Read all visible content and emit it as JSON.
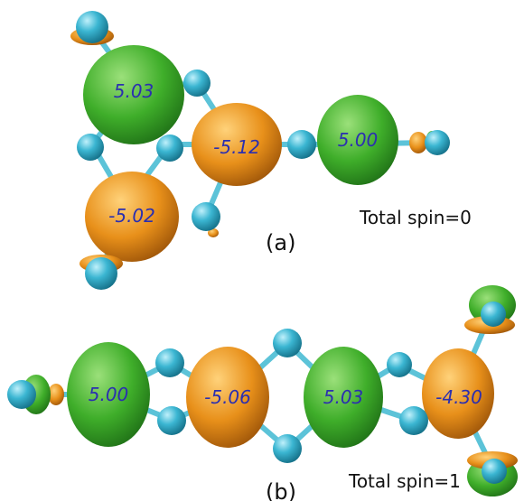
{
  "colors": {
    "up_lobe": "#3fae2a",
    "down_lobe": "#e8901a",
    "atom": "#2ea7c4",
    "bond": "#5cc3d8",
    "moment_text": "#2b2fb0"
  },
  "panel_a": {
    "label": "(a)",
    "total_spin": "Total spin=0",
    "moments": [
      "5.03",
      "-5.12",
      "5.00",
      "-5.02"
    ]
  },
  "panel_b": {
    "label": "(b)",
    "total_spin": "Total spin=1",
    "moments": [
      "5.00",
      "-5.06",
      "5.03",
      "-4.30"
    ]
  }
}
